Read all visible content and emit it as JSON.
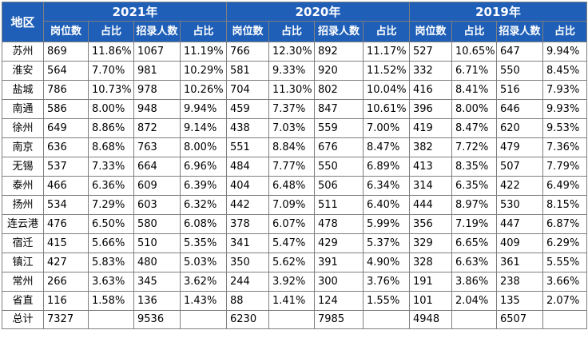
{
  "header": {
    "region_label": "地区",
    "years": [
      "2021年",
      "2020年",
      "2019年"
    ],
    "sub_columns": [
      "岗位数",
      "占比",
      "招录人数",
      "占比"
    ]
  },
  "rows": [
    {
      "region": "苏州",
      "cells": [
        "869",
        "11.86%",
        "1067",
        "11.19%",
        "766",
        "12.30%",
        "892",
        "11.17%",
        "527",
        "10.65%",
        "647",
        "9.94%"
      ]
    },
    {
      "region": "淮安",
      "cells": [
        "564",
        "7.70%",
        "981",
        "10.29%",
        "581",
        "9.33%",
        "920",
        "11.52%",
        "332",
        "6.71%",
        "550",
        "8.45%"
      ]
    },
    {
      "region": "盐城",
      "cells": [
        "786",
        "10.73%",
        "978",
        "10.26%",
        "704",
        "11.30%",
        "802",
        "10.04%",
        "416",
        "8.41%",
        "516",
        "7.93%"
      ]
    },
    {
      "region": "南通",
      "cells": [
        "586",
        "8.00%",
        "948",
        "9.94%",
        "459",
        "7.37%",
        "847",
        "10.61%",
        "396",
        "8.00%",
        "646",
        "9.93%"
      ]
    },
    {
      "region": "徐州",
      "cells": [
        "649",
        "8.86%",
        "872",
        "9.14%",
        "438",
        "7.03%",
        "559",
        "7.00%",
        "419",
        "8.47%",
        "620",
        "9.53%"
      ]
    },
    {
      "region": "南京",
      "cells": [
        "636",
        "8.68%",
        "763",
        "8.00%",
        "551",
        "8.84%",
        "676",
        "8.47%",
        "382",
        "7.72%",
        "479",
        "7.36%"
      ]
    },
    {
      "region": "无锡",
      "cells": [
        "537",
        "7.33%",
        "664",
        "6.96%",
        "484",
        "7.77%",
        "550",
        "6.89%",
        "413",
        "8.35%",
        "507",
        "7.79%"
      ]
    },
    {
      "region": "泰州",
      "cells": [
        "466",
        "6.36%",
        "609",
        "6.39%",
        "404",
        "6.48%",
        "506",
        "6.34%",
        "314",
        "6.35%",
        "422",
        "6.49%"
      ]
    },
    {
      "region": "扬州",
      "cells": [
        "534",
        "7.29%",
        "603",
        "6.32%",
        "442",
        "7.09%",
        "511",
        "6.40%",
        "444",
        "8.97%",
        "530",
        "8.15%"
      ]
    },
    {
      "region": "连云港",
      "cells": [
        "476",
        "6.50%",
        "580",
        "6.08%",
        "378",
        "6.07%",
        "478",
        "5.99%",
        "356",
        "7.19%",
        "447",
        "6.87%"
      ]
    },
    {
      "region": "宿迁",
      "cells": [
        "415",
        "5.66%",
        "510",
        "5.35%",
        "341",
        "5.47%",
        "429",
        "5.37%",
        "329",
        "6.65%",
        "409",
        "6.29%"
      ]
    },
    {
      "region": "镇江",
      "cells": [
        "427",
        "5.83%",
        "480",
        "5.03%",
        "350",
        "5.62%",
        "391",
        "4.90%",
        "328",
        "6.63%",
        "361",
        "5.55%"
      ]
    },
    {
      "region": "常州",
      "cells": [
        "266",
        "3.63%",
        "345",
        "3.62%",
        "244",
        "3.92%",
        "300",
        "3.76%",
        "191",
        "3.86%",
        "238",
        "3.66%"
      ]
    },
    {
      "region": "省直",
      "cells": [
        "116",
        "1.58%",
        "136",
        "1.43%",
        "88",
        "1.41%",
        "124",
        "1.55%",
        "101",
        "2.04%",
        "135",
        "2.07%"
      ]
    }
  ],
  "total": {
    "region": "总计",
    "cells": [
      "7327",
      "",
      "9536",
      "",
      "6230",
      "",
      "7985",
      "",
      "4948",
      "",
      "6507",
      ""
    ]
  },
  "colors": {
    "header_bg": "#1f5fb8",
    "header_text": "#ffffff",
    "border": "#7f7f7f"
  }
}
